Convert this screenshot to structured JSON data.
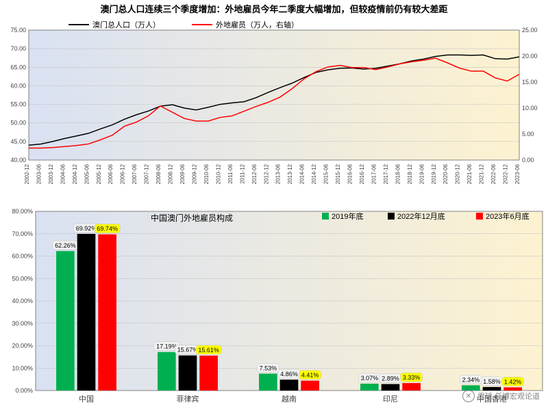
{
  "topChart": {
    "type": "line",
    "title": "澳门总人口连续三个季度增加：外地雇员今年二季度大幅增加，但较疫情前仍有较大差距",
    "title_fontsize": 13,
    "background_gradient": [
      "#d9e1f2",
      "#fdf2d0"
    ],
    "grid_color": "#bfbfbf",
    "xLabels": [
      "2002-12",
      "2003-06",
      "2003-12",
      "2004-06",
      "2004-12",
      "2005-06",
      "2005-12",
      "2006-06",
      "2006-12",
      "2007-06",
      "2007-12",
      "2008-06",
      "2008-12",
      "2009-06",
      "2009-12",
      "2010-06",
      "2010-12",
      "2011-06",
      "2011-12",
      "2012-06",
      "2012-12",
      "2013-06",
      "2013-12",
      "2014-06",
      "2014-12",
      "2015-06",
      "2015-12",
      "2016-06",
      "2016-12",
      "2017-06",
      "2017-12",
      "2018-06",
      "2018-12",
      "2019-06",
      "2019-12",
      "2020-06",
      "2020-12",
      "2021-06",
      "2021-12",
      "2022-06",
      "2022-12",
      "2023-06"
    ],
    "leftAxis": {
      "min": 40,
      "max": 75,
      "step": 5,
      "label_fmt": ".00"
    },
    "rightAxis": {
      "min": 0,
      "max": 25,
      "step": 5,
      "label_fmt": ".00"
    },
    "legend": [
      {
        "label": "澳门总人口（万人）",
        "color": "#000000"
      },
      {
        "label": "外地雇员（万人，右轴）",
        "color": "#ff0000"
      }
    ],
    "series1": {
      "color": "#000000",
      "axis": "left",
      "values": [
        44.0,
        44.3,
        45.0,
        45.8,
        46.5,
        47.2,
        48.4,
        49.5,
        51.0,
        52.2,
        53.2,
        54.5,
        54.9,
        54.0,
        53.5,
        54.2,
        55.0,
        55.4,
        55.7,
        56.8,
        58.2,
        59.5,
        60.7,
        62.2,
        63.6,
        64.3,
        64.7,
        64.8,
        64.5,
        64.7,
        65.3,
        65.9,
        66.7,
        67.2,
        67.9,
        68.3,
        68.3,
        68.2,
        68.3,
        67.3,
        67.2,
        67.8
      ]
    },
    "series2": {
      "color": "#ff0000",
      "axis": "right",
      "values": [
        2.3,
        2.3,
        2.4,
        2.6,
        2.8,
        3.1,
        3.9,
        4.8,
        6.5,
        7.3,
        8.5,
        10.4,
        9.2,
        8.0,
        7.5,
        7.5,
        8.2,
        8.5,
        9.4,
        10.3,
        11.1,
        12.1,
        13.7,
        15.6,
        17.0,
        17.9,
        18.2,
        17.8,
        17.8,
        17.4,
        17.9,
        18.5,
        18.9,
        19.2,
        19.6,
        18.7,
        17.7,
        17.1,
        17.1,
        15.8,
        15.2,
        16.5
      ]
    }
  },
  "bottomChart": {
    "type": "bar",
    "title": "中国澳门外地雇员构成",
    "title_fontsize": 12,
    "background_gradient": [
      "#d9e1f2",
      "#fdf2d0"
    ],
    "grid_color": "#bfbfbf",
    "yAxis": {
      "min": 0,
      "max": 80,
      "step": 10,
      "suffix": ".00%"
    },
    "categories": [
      "中国",
      "菲律宾",
      "越南",
      "印尼",
      "中国香港"
    ],
    "legend": [
      {
        "label": "2019年底",
        "color": "#00b050"
      },
      {
        "label": "2022年12月底",
        "color": "#000000"
      },
      {
        "label": "2023年6月底",
        "color": "#ff0000"
      }
    ],
    "bars": [
      {
        "cat": "中国",
        "vals": [
          62.26,
          69.92,
          69.74
        ]
      },
      {
        "cat": "菲律宾",
        "vals": [
          17.19,
          15.67,
          15.61
        ]
      },
      {
        "cat": "越南",
        "vals": [
          7.53,
          4.86,
          4.41
        ]
      },
      {
        "cat": "印尼",
        "vals": [
          3.07,
          2.89,
          3.33
        ]
      },
      {
        "cat": "中国香港",
        "vals": [
          2.34,
          1.58,
          1.42
        ]
      }
    ],
    "watermark_text": "雪球  任博宏观论道"
  }
}
